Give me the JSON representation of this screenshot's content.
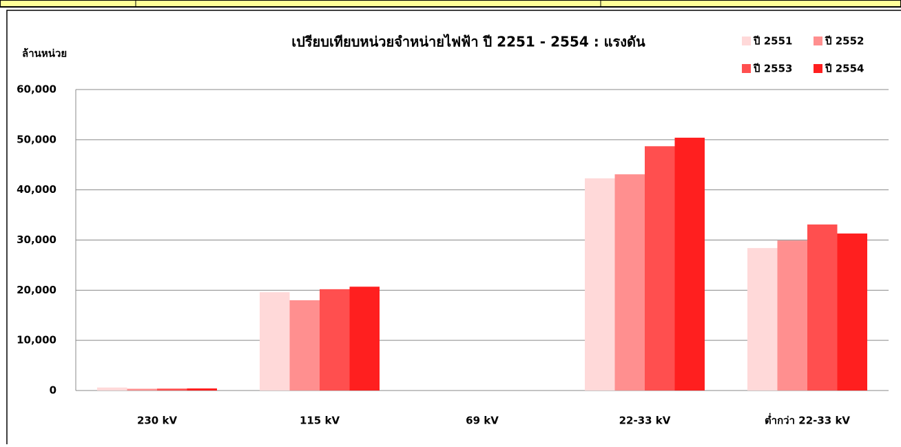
{
  "chart_data": {
    "type": "bar",
    "title": "เปรียบเทียบหน่วยจำหน่ายไฟฟ้า ปี 2251 - 2554 : แรงดัน",
    "y_label": "ล้านหน่วย",
    "categories": [
      "230 kV",
      "115 kV",
      "69 kV",
      "22-33 kV",
      "ต่ำกว่า 22-33 kV"
    ],
    "series": [
      {
        "name": "ปี 2551",
        "color": "#ffd9d9",
        "values": [
          600,
          19600,
          0,
          42300,
          28400
        ]
      },
      {
        "name": "ปี 2552",
        "color": "#ff8f8f",
        "values": [
          350,
          18000,
          0,
          43100,
          29900
        ]
      },
      {
        "name": "ปี 2553",
        "color": "#ff4f4f",
        "values": [
          380,
          20200,
          0,
          48700,
          33100
        ]
      },
      {
        "name": "ปี 2554",
        "color": "#ff1f1f",
        "values": [
          420,
          20700,
          0,
          50400,
          31300
        ]
      }
    ],
    "ylim": [
      0,
      60000
    ],
    "yticks": [
      0,
      {
        "value": 10000,
        "label": "10,000"
      },
      {
        "value": 20000,
        "label": "20,000"
      },
      {
        "value": 30000,
        "label": "30,000"
      },
      {
        "value": 40000,
        "label": "40,000"
      },
      {
        "value": 50000,
        "label": "50,000"
      },
      {
        "value": 60000,
        "label": "60,000"
      }
    ],
    "grid": true
  }
}
